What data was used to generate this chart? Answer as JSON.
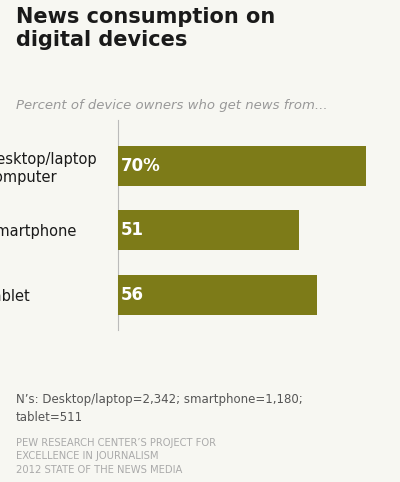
{
  "title": "News consumption on\ndigital devices",
  "subtitle": "Percent of device owners who get news from...",
  "categories": [
    "Desktop/laptop\ncomputer",
    "Smartphone",
    "Tablet"
  ],
  "values": [
    70,
    51,
    56
  ],
  "bar_labels": [
    "70%",
    "51",
    "56"
  ],
  "bar_color": "#7d7b18",
  "background_color": "#f7f7f2",
  "text_color_dark": "#1a1a1a",
  "text_color_gray": "#999999",
  "footnote": "N’s: Desktop/laptop=2,342; smartphone=1,180;\ntablet=511",
  "source_line1": "PEW RESEARCH CENTER’S PROJECT FOR",
  "source_line2": "EXCELLENCE IN JOURNALISM",
  "source_line3": "2012 STATE OF THE NEWS MEDIA",
  "xlim": [
    0,
    75
  ],
  "bar_height": 0.62
}
